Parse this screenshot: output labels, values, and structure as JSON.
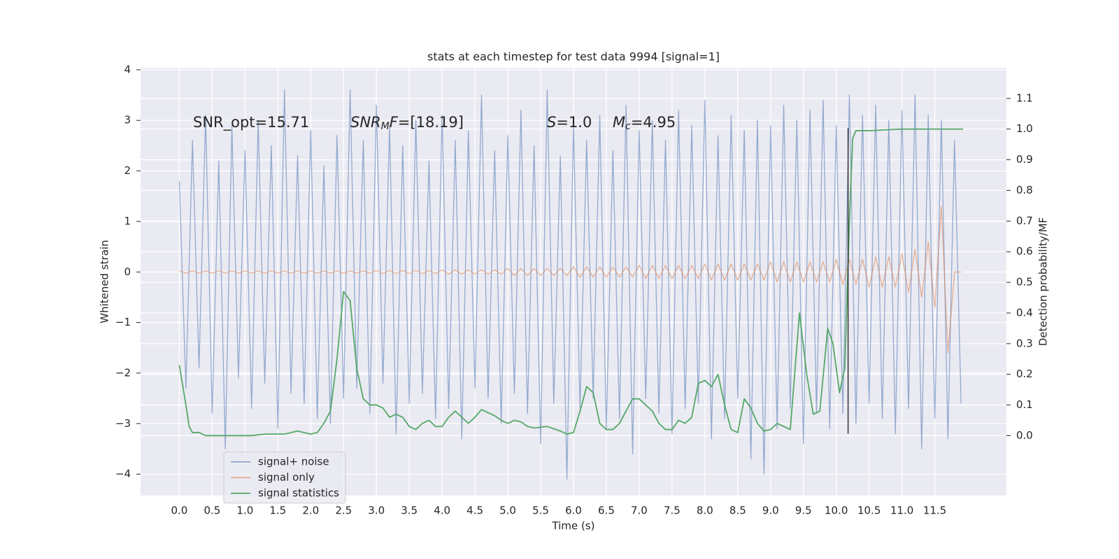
{
  "chart_data": {
    "type": "line",
    "title": "stats at each timestep for test data 9994 [signal=1]",
    "xlabel": "Time (s)",
    "ylabel": "Whitened strain",
    "y2label": "Detection probability/MF",
    "xlim": [
      -0.59,
      12.59
    ],
    "ylim": [
      -4.42,
      4.04
    ],
    "y2lim": [
      -0.195,
      1.2
    ],
    "xticks": [
      {
        "value": 0,
        "label": "0.0"
      },
      0.5,
      {
        "value": 1,
        "label": "1.0"
      },
      1.5,
      {
        "value": 2,
        "label": "2.0"
      },
      2.5,
      {
        "value": 3,
        "label": "3.0"
      },
      3.5,
      {
        "value": 4,
        "label": "4.0"
      },
      4.5,
      {
        "value": 5,
        "label": "5.0"
      },
      5.5,
      {
        "value": 6,
        "label": "6.0"
      },
      6.5,
      {
        "value": 7,
        "label": "7.0"
      },
      7.5,
      {
        "value": 8,
        "label": "8.0"
      },
      8.5,
      {
        "value": 9,
        "label": "9.0"
      },
      9.5,
      {
        "value": 10,
        "label": "10.0"
      },
      10.5,
      {
        "value": 11,
        "label": "11.0"
      },
      11.5
    ],
    "yticks": [
      {
        "value": -4,
        "label": "−4"
      },
      {
        "value": -3,
        "label": "−3"
      },
      {
        "value": -2,
        "label": "−2"
      },
      {
        "value": -1,
        "label": "−1"
      },
      0,
      1,
      2,
      3,
      4
    ],
    "y2ticks": [
      {
        "value": 0,
        "label": "0.0"
      },
      0.1,
      0.2,
      0.3,
      0.4,
      0.5,
      0.6,
      0.7,
      0.8,
      0.9,
      {
        "value": 1,
        "label": "1.0"
      },
      1.1
    ],
    "grid": true,
    "legend": "lower left",
    "annotations": [
      [
        {
          "text": "SNR_opt=15.71"
        }
      ],
      [
        {
          "text": "SNR",
          "style": "italic"
        },
        {
          "text": "M",
          "style": "sub"
        },
        {
          "text": "F",
          "style": "italic"
        },
        {
          "text": "=[18.19]"
        }
      ],
      [
        {
          "text": "S",
          "style": "italic"
        },
        {
          "text": "=1.0"
        }
      ],
      [
        {
          "text": "M",
          "style": "italic"
        },
        {
          "text": "c",
          "style": "sub"
        },
        {
          "text": "=4.95"
        }
      ]
    ],
    "vline": {
      "x": 10.18,
      "ymin": -3.2,
      "ymax": 2.85,
      "color": "#333333"
    },
    "x": [
      0,
      0.1,
      0.2,
      0.3,
      0.4,
      0.5,
      0.6,
      0.7,
      0.8,
      0.9,
      1,
      1.1,
      1.2,
      1.3,
      1.4,
      1.5,
      1.6,
      1.7,
      1.8,
      1.9,
      2,
      2.1,
      2.2,
      2.3,
      2.4,
      2.5,
      2.6,
      2.7,
      2.8,
      2.9,
      3,
      3.1,
      3.2,
      3.3,
      3.4,
      3.5,
      3.6,
      3.7,
      3.8,
      3.9,
      4,
      4.1,
      4.2,
      4.3,
      4.4,
      4.5,
      4.6,
      4.7,
      4.8,
      4.9,
      5,
      5.1,
      5.2,
      5.3,
      5.4,
      5.5,
      5.6,
      5.7,
      5.8,
      5.9,
      6,
      6.1,
      6.2,
      6.3,
      6.4,
      6.5,
      6.6,
      6.7,
      6.8,
      6.9,
      7,
      7.1,
      7.2,
      7.3,
      7.4,
      7.5,
      7.6,
      7.7,
      7.8,
      7.9,
      8,
      8.1,
      8.2,
      8.3,
      8.4,
      8.5,
      8.6,
      8.7,
      8.8,
      8.9,
      9,
      9.1,
      9.2,
      9.3,
      9.4,
      9.5,
      9.6,
      9.7,
      9.8,
      9.9,
      10,
      10.1,
      10.2,
      10.3,
      10.4,
      10.5,
      10.6,
      10.7,
      10.8,
      10.9,
      11,
      11.1,
      11.2,
      11.3,
      11.4,
      11.5,
      11.6,
      11.7,
      11.8,
      11.9
    ],
    "series": [
      {
        "name": "signal+ noise",
        "color": "#4c72b0",
        "values": [
          1.8,
          -2.3,
          2.6,
          -1.9,
          3.1,
          -2.8,
          2.2,
          -3.5,
          2.9,
          -2.1,
          2.4,
          -2.7,
          3.0,
          -2.2,
          2.5,
          -3.1,
          3.6,
          -2.4,
          2.3,
          -2.6,
          2.8,
          -2.9,
          2.1,
          -3.0,
          2.7,
          -2.5,
          3.6,
          -2.3,
          2.6,
          -2.8,
          3.3,
          -2.2,
          2.9,
          -3.2,
          2.5,
          -2.6,
          3.0,
          -2.4,
          2.2,
          -2.9,
          3.1,
          -2.7,
          2.6,
          -3.3,
          2.8,
          -2.3,
          3.5,
          -2.5,
          2.4,
          -3.0,
          2.7,
          -2.4,
          3.2,
          -2.8,
          2.5,
          -3.4,
          3.6,
          -2.6,
          2.3,
          -4.1,
          2.9,
          -2.7,
          2.6,
          -2.5,
          3.1,
          -3.1,
          2.4,
          -2.9,
          3.3,
          -3.6,
          2.8,
          -2.5,
          3.0,
          -2.8,
          2.6,
          -3.2,
          3.2,
          -2.7,
          2.9,
          -2.6,
          3.4,
          -3.3,
          2.7,
          -2.9,
          3.1,
          -2.5,
          2.8,
          -3.7,
          3.0,
          -4.0,
          2.9,
          -3.1,
          3.3,
          -2.7,
          3.0,
          -3.4,
          3.2,
          -2.8,
          3.4,
          -3.1,
          2.9,
          -2.8,
          3.5,
          -3.0,
          3.1,
          -2.6,
          3.3,
          -2.9,
          3.0,
          -3.2,
          3.2,
          -2.7,
          3.5,
          -3.5,
          3.1,
          -2.9,
          3.0,
          -3.3,
          2.6,
          -2.6
        ]
      },
      {
        "name": "signal only",
        "color": "#dd8452",
        "values": [
          0.02,
          -0.02,
          0.02,
          -0.02,
          0.02,
          -0.02,
          0.02,
          -0.02,
          0.02,
          -0.02,
          0.02,
          -0.02,
          0.02,
          -0.02,
          0.02,
          -0.02,
          0.02,
          -0.02,
          0.02,
          -0.02,
          0.02,
          -0.02,
          0.02,
          -0.02,
          0.02,
          -0.02,
          0.02,
          -0.02,
          0.02,
          -0.02,
          0.03,
          -0.03,
          0.03,
          -0.03,
          0.03,
          -0.03,
          0.03,
          -0.03,
          0.03,
          -0.03,
          0.04,
          -0.04,
          0.04,
          -0.04,
          0.04,
          -0.04,
          0.04,
          -0.04,
          0.04,
          -0.04,
          0.07,
          -0.07,
          0.07,
          -0.07,
          0.07,
          -0.07,
          0.07,
          -0.07,
          0.07,
          -0.07,
          0.1,
          -0.1,
          0.1,
          -0.1,
          0.1,
          -0.1,
          0.1,
          -0.1,
          0.1,
          -0.1,
          0.13,
          -0.13,
          0.13,
          -0.13,
          0.13,
          -0.13,
          0.13,
          -0.13,
          0.13,
          -0.13,
          0.16,
          -0.16,
          0.16,
          -0.16,
          0.16,
          -0.16,
          0.16,
          -0.16,
          0.16,
          -0.16,
          0.2,
          -0.2,
          0.2,
          -0.2,
          0.2,
          -0.2,
          0.2,
          -0.2,
          0.2,
          -0.2,
          0.25,
          -0.25,
          0.25,
          -0.25,
          0.25,
          -0.3,
          0.3,
          -0.3,
          0.3,
          -0.3,
          0.36,
          -0.4,
          0.45,
          -0.5,
          0.6,
          -0.7,
          1.3,
          -1.6,
          0,
          0
        ]
      },
      {
        "name": "signal statistics",
        "color": "#55a868",
        "axis": "y2",
        "x": [
          0,
          0.1,
          0.15,
          0.2,
          0.3,
          0.4,
          0.5,
          0.8,
          1,
          1.1,
          1.3,
          1.6,
          1.8,
          2,
          2.1,
          2.2,
          2.3,
          2.4,
          2.5,
          2.6,
          2.7,
          2.8,
          2.9,
          3,
          3.1,
          3.2,
          3.3,
          3.4,
          3.5,
          3.6,
          3.7,
          3.8,
          3.9,
          4,
          4.1,
          4.2,
          4.3,
          4.4,
          4.5,
          4.6,
          4.7,
          4.8,
          4.9,
          5,
          5.1,
          5.2,
          5.3,
          5.4,
          5.6,
          5.8,
          5.9,
          6,
          6.1,
          6.2,
          6.3,
          6.4,
          6.5,
          6.6,
          6.7,
          6.8,
          6.9,
          7,
          7.1,
          7.2,
          7.3,
          7.4,
          7.5,
          7.6,
          7.7,
          7.8,
          7.9,
          8,
          8.1,
          8.2,
          8.3,
          8.4,
          8.5,
          8.6,
          8.7,
          8.8,
          8.9,
          9,
          9.1,
          9.2,
          9.3,
          9.44,
          9.55,
          9.65,
          9.75,
          9.87,
          9.95,
          10.05,
          10.13,
          10.2,
          10.25,
          10.3,
          10.5,
          11,
          11.5,
          11.93
        ],
        "values": [
          0.23,
          0.1,
          0.03,
          0.01,
          0.01,
          0,
          0,
          0,
          0,
          0,
          0.005,
          0.005,
          0.015,
          0.005,
          0.01,
          0.04,
          0.08,
          0.25,
          0.47,
          0.44,
          0.22,
          0.12,
          0.1,
          0.1,
          0.09,
          0.06,
          0.07,
          0.06,
          0.03,
          0.02,
          0.04,
          0.05,
          0.03,
          0.03,
          0.06,
          0.08,
          0.06,
          0.04,
          0.06,
          0.085,
          0.075,
          0.065,
          0.05,
          0.04,
          0.05,
          0.045,
          0.03,
          0.025,
          0.03,
          0.015,
          0.005,
          0.01,
          0.08,
          0.16,
          0.14,
          0.04,
          0.02,
          0.02,
          0.04,
          0.08,
          0.12,
          0.12,
          0.1,
          0.08,
          0.04,
          0.02,
          0.02,
          0.05,
          0.04,
          0.06,
          0.17,
          0.18,
          0.16,
          0.2,
          0.1,
          0.02,
          0.01,
          0.12,
          0.09,
          0.04,
          0.015,
          0.02,
          0.04,
          0.03,
          0.02,
          0.4,
          0.2,
          0.07,
          0.08,
          0.35,
          0.3,
          0.14,
          0.22,
          0.7,
          0.97,
          0.995,
          0.995,
          1,
          1,
          1
        ]
      }
    ]
  }
}
